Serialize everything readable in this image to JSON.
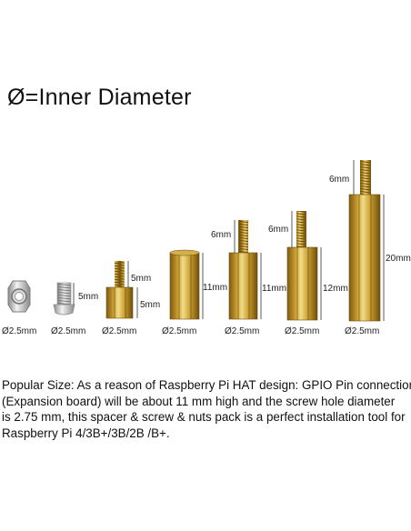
{
  "title": "Ø=Inner Diameter",
  "colors": {
    "brass_light": "#e8cf6a",
    "brass_mid": "#c79a2d",
    "brass_dark": "#7d5a12",
    "steel_light": "#e6e6e6",
    "steel_dark": "#8a8a8a",
    "dimension_line": "#333333"
  },
  "parts": [
    {
      "name": "nut",
      "label": "Ø2.5mm"
    },
    {
      "name": "screw",
      "label": "Ø2.5mm",
      "length_label": "5mm"
    },
    {
      "name": "standoff-5mm",
      "label": "Ø2.5mm",
      "thread_label": "5mm",
      "body_label": "5mm"
    },
    {
      "name": "spacer-11mm",
      "label": "Ø2.5mm",
      "body_label": "11mm"
    },
    {
      "name": "standoff-11mm",
      "label": "Ø2.5mm",
      "thread_label": "6mm",
      "body_label": "11mm"
    },
    {
      "name": "standoff-12mm",
      "label": "Ø2.5mm",
      "thread_label": "6mm",
      "body_label": "12mm"
    },
    {
      "name": "standoff-20mm",
      "label": "Ø2.5mm",
      "thread_label": "6mm",
      "body_label": "20mm"
    }
  ],
  "description": [
    "Popular Size:  As a reason of Raspberry Pi HAT design: GPIO Pin connection",
    "(Expansion board) will be about 11 mm high and the screw hole diameter",
    "is 2.75 mm, this spacer & screw & nuts pack is a perfect installation tool for",
    "Raspberry Pi 4/3B+/3B/2B /B+."
  ]
}
